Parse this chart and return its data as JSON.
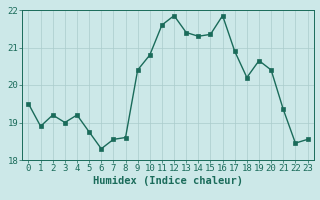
{
  "x": [
    0,
    1,
    2,
    3,
    4,
    5,
    6,
    7,
    8,
    9,
    10,
    11,
    12,
    13,
    14,
    15,
    16,
    17,
    18,
    19,
    20,
    21,
    22,
    23
  ],
  "y": [
    19.5,
    18.9,
    19.2,
    19.0,
    19.2,
    18.75,
    18.3,
    18.55,
    18.6,
    20.4,
    20.8,
    21.6,
    21.85,
    21.4,
    21.3,
    21.35,
    21.85,
    20.9,
    20.2,
    20.65,
    20.4,
    19.35,
    18.45,
    18.55
  ],
  "line_color": "#1a6b5a",
  "marker": "s",
  "marker_size": 2.2,
  "bg_color": "#cce8e8",
  "grid_color": "#aacccc",
  "xlabel": "Humidex (Indice chaleur)",
  "ylim": [
    18,
    22
  ],
  "xlim_min": -0.5,
  "xlim_max": 23.5,
  "yticks": [
    18,
    19,
    20,
    21,
    22
  ],
  "xticks": [
    0,
    1,
    2,
    3,
    4,
    5,
    6,
    7,
    8,
    9,
    10,
    11,
    12,
    13,
    14,
    15,
    16,
    17,
    18,
    19,
    20,
    21,
    22,
    23
  ],
  "tick_color": "#1a6b5a",
  "label_color": "#1a6b5a",
  "xlabel_fontsize": 7.5,
  "tick_fontsize": 6.5,
  "line_width": 1.0
}
